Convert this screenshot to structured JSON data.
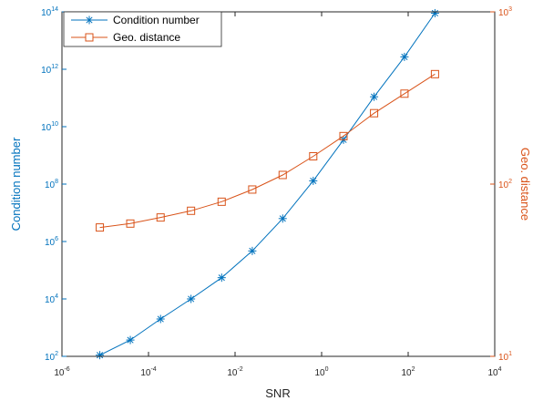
{
  "chart_data": {
    "type": "line",
    "title": "",
    "xlabel": "SNR",
    "ylabel_left": "Condition number",
    "ylabel_right": "Geo. distance",
    "x_scale": "log",
    "y_left_scale": "log",
    "y_right_scale": "log",
    "xlim": [
      1e-06,
      10000.0
    ],
    "ylim_left": [
      100.0,
      100000000000000.0
    ],
    "ylim_right": [
      10,
      1000
    ],
    "x_ticks": [
      {
        "base": "10",
        "exp": "-6"
      },
      {
        "base": "10",
        "exp": "-4"
      },
      {
        "base": "10",
        "exp": "-2"
      },
      {
        "base": "10",
        "exp": "0"
      },
      {
        "base": "10",
        "exp": "2"
      },
      {
        "base": "10",
        "exp": "4"
      }
    ],
    "y_left_ticks": [
      {
        "base": "10",
        "exp": "2"
      },
      {
        "base": "10",
        "exp": "4"
      },
      {
        "base": "10",
        "exp": "6"
      },
      {
        "base": "10",
        "exp": "8"
      },
      {
        "base": "10",
        "exp": "10"
      },
      {
        "base": "10",
        "exp": "12"
      },
      {
        "base": "10",
        "exp": "14"
      }
    ],
    "y_right_ticks": [
      {
        "base": "10",
        "exp": "1"
      },
      {
        "base": "10",
        "exp": "2"
      },
      {
        "base": "10",
        "exp": "3"
      }
    ],
    "grid": false,
    "legend_position": "top-left",
    "colors": {
      "left": "#0072BD",
      "right": "#D95319"
    },
    "series": [
      {
        "name": "Condition number",
        "axis": "left",
        "marker": "asterisk",
        "color": "#0072BD",
        "x": [
          7.5e-06,
          3.8e-05,
          0.00019,
          0.00096,
          0.0049,
          0.025,
          0.126,
          0.64,
          3.2,
          16.3,
          82,
          416
        ],
        "y": [
          110.0,
          370.0,
          2000.0,
          10000.0,
          55000.0,
          470000.0,
          6300000.0,
          130000000.0,
          3500000000.0,
          110000000000.0,
          2700000000000.0,
          90000000000000.0
        ]
      },
      {
        "name": "Geo. distance",
        "axis": "right",
        "marker": "square",
        "color": "#D95319",
        "x": [
          7.5e-06,
          3.8e-05,
          0.00019,
          0.00096,
          0.0049,
          0.025,
          0.126,
          0.64,
          3.2,
          16.3,
          82,
          416
        ],
        "y": [
          56,
          59,
          64,
          70,
          79,
          93,
          113,
          145,
          190,
          258,
          335,
          435
        ]
      }
    ]
  }
}
